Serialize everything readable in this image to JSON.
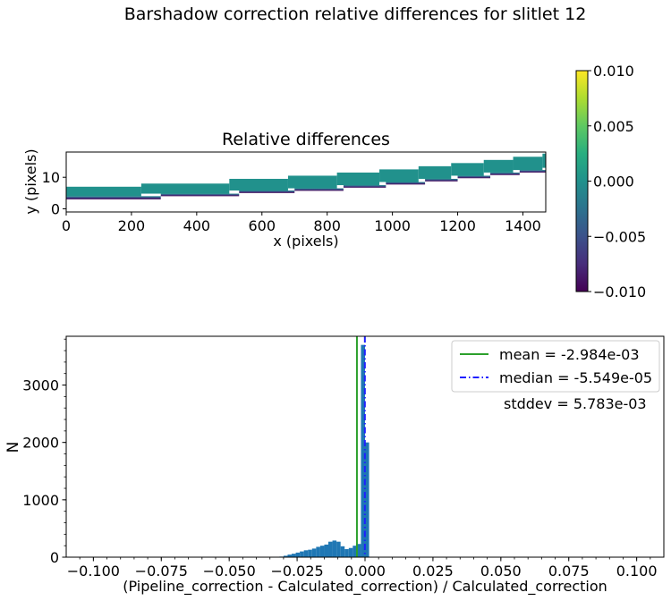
{
  "figure": {
    "title": "Barshadow correction relative differences for slitlet 12"
  },
  "chart_data": [
    {
      "type": "heatmap",
      "title": "Relative differences",
      "xlabel": "x (pixels)",
      "ylabel": "y (pixels)",
      "xlim": [
        0,
        1470
      ],
      "ylim": [
        -1,
        18
      ],
      "x_ticks": [
        0,
        200,
        400,
        600,
        800,
        1000,
        1200,
        1400
      ],
      "x_tick_labels": [
        "0",
        "200",
        "400",
        "600",
        "800",
        "1000",
        "1200",
        "1400"
      ],
      "y_ticks": [
        0,
        10
      ],
      "y_tick_labels": [
        "0",
        "10"
      ],
      "colorbar": {
        "colormap": "viridis",
        "vmin": -0.01,
        "vmax": 0.01,
        "ticks": [
          0.01,
          0.005,
          0.0,
          -0.005,
          -0.01
        ],
        "tick_labels": [
          "0.010",
          "0.005",
          "0.000",
          "−0.005",
          "−0.010"
        ]
      },
      "segments": [
        {
          "x0": 0,
          "x1": 230,
          "y_bot": 4.0,
          "y_top": 7.0
        },
        {
          "x0": 230,
          "x1": 500,
          "y_bot": 4.8,
          "y_top": 8.0
        },
        {
          "x0": 500,
          "x1": 680,
          "y_bot": 5.8,
          "y_top": 9.5
        },
        {
          "x0": 680,
          "x1": 830,
          "y_bot": 6.5,
          "y_top": 10.5
        },
        {
          "x0": 830,
          "x1": 960,
          "y_bot": 7.5,
          "y_top": 11.5
        },
        {
          "x0": 960,
          "x1": 1080,
          "y_bot": 8.5,
          "y_top": 12.5
        },
        {
          "x0": 1080,
          "x1": 1180,
          "y_bot": 9.5,
          "y_top": 13.5
        },
        {
          "x0": 1180,
          "x1": 1280,
          "y_bot": 10.5,
          "y_top": 14.5
        },
        {
          "x0": 1280,
          "x1": 1370,
          "y_bot": 11.5,
          "y_top": 15.5
        },
        {
          "x0": 1370,
          "x1": 1460,
          "y_bot": 12.3,
          "y_top": 16.5
        },
        {
          "x0": 1460,
          "x1": 1470,
          "y_bot": 13.0,
          "y_top": 17.5
        }
      ],
      "edge_segments": [
        {
          "x0": 0,
          "x1": 290,
          "y_bot": 3.0,
          "y_top": 4.0
        },
        {
          "x0": 290,
          "x1": 530,
          "y_bot": 4.0,
          "y_top": 4.8
        },
        {
          "x0": 530,
          "x1": 700,
          "y_bot": 5.0,
          "y_top": 5.8
        },
        {
          "x0": 700,
          "x1": 850,
          "y_bot": 5.7,
          "y_top": 6.5
        },
        {
          "x0": 850,
          "x1": 980,
          "y_bot": 6.7,
          "y_top": 7.5
        },
        {
          "x0": 980,
          "x1": 1100,
          "y_bot": 7.7,
          "y_top": 8.5
        },
        {
          "x0": 1100,
          "x1": 1200,
          "y_bot": 8.7,
          "y_top": 9.5
        },
        {
          "x0": 1200,
          "x1": 1300,
          "y_bot": 9.7,
          "y_top": 10.5
        },
        {
          "x0": 1300,
          "x1": 1390,
          "y_bot": 10.7,
          "y_top": 11.5
        },
        {
          "x0": 1390,
          "x1": 1470,
          "y_bot": 11.5,
          "y_top": 12.3
        }
      ]
    },
    {
      "type": "bar",
      "subtype": "histogram",
      "xlabel": "(Pipeline_correction - Calculated_correction) / Calculated_correction",
      "ylabel": "N",
      "xlim": [
        -0.11,
        0.11
      ],
      "ylim": [
        0,
        3850
      ],
      "x_ticks": [
        -0.1,
        -0.075,
        -0.05,
        -0.025,
        0.0,
        0.025,
        0.05,
        0.075,
        0.1
      ],
      "x_tick_labels": [
        "−0.100",
        "−0.075",
        "−0.050",
        "−0.025",
        "0.000",
        "0.025",
        "0.050",
        "0.075",
        "0.100"
      ],
      "y_ticks": [
        0,
        1000,
        2000,
        3000
      ],
      "y_tick_labels": [
        "0",
        "1000",
        "2000",
        "3000"
      ],
      "bin_width": 0.0015,
      "bins": [
        {
          "x": -0.0315,
          "n": 10
        },
        {
          "x": -0.03,
          "n": 25
        },
        {
          "x": -0.0285,
          "n": 45
        },
        {
          "x": -0.027,
          "n": 60
        },
        {
          "x": -0.0255,
          "n": 80
        },
        {
          "x": -0.024,
          "n": 100
        },
        {
          "x": -0.0225,
          "n": 120
        },
        {
          "x": -0.021,
          "n": 130
        },
        {
          "x": -0.0195,
          "n": 150
        },
        {
          "x": -0.018,
          "n": 180
        },
        {
          "x": -0.0165,
          "n": 200
        },
        {
          "x": -0.015,
          "n": 220
        },
        {
          "x": -0.0135,
          "n": 270
        },
        {
          "x": -0.012,
          "n": 290
        },
        {
          "x": -0.0105,
          "n": 270
        },
        {
          "x": -0.009,
          "n": 190
        },
        {
          "x": -0.0075,
          "n": 140
        },
        {
          "x": -0.006,
          "n": 160
        },
        {
          "x": -0.0045,
          "n": 200
        },
        {
          "x": -0.003,
          "n": 230
        },
        {
          "x": -0.0015,
          "n": 3700
        },
        {
          "x": 0.0,
          "n": 2000
        }
      ],
      "mean": -0.002984,
      "median": -5.549e-05,
      "legend": [
        {
          "label": "mean = -2.984e-03",
          "color": "#2ca02c",
          "style": "solid"
        },
        {
          "label": "median = -5.549e-05",
          "color": "#1f1fff",
          "style": "dashdot"
        }
      ],
      "annotation": "stddev = 5.783e-03",
      "bar_color": "#1f77b4"
    }
  ]
}
